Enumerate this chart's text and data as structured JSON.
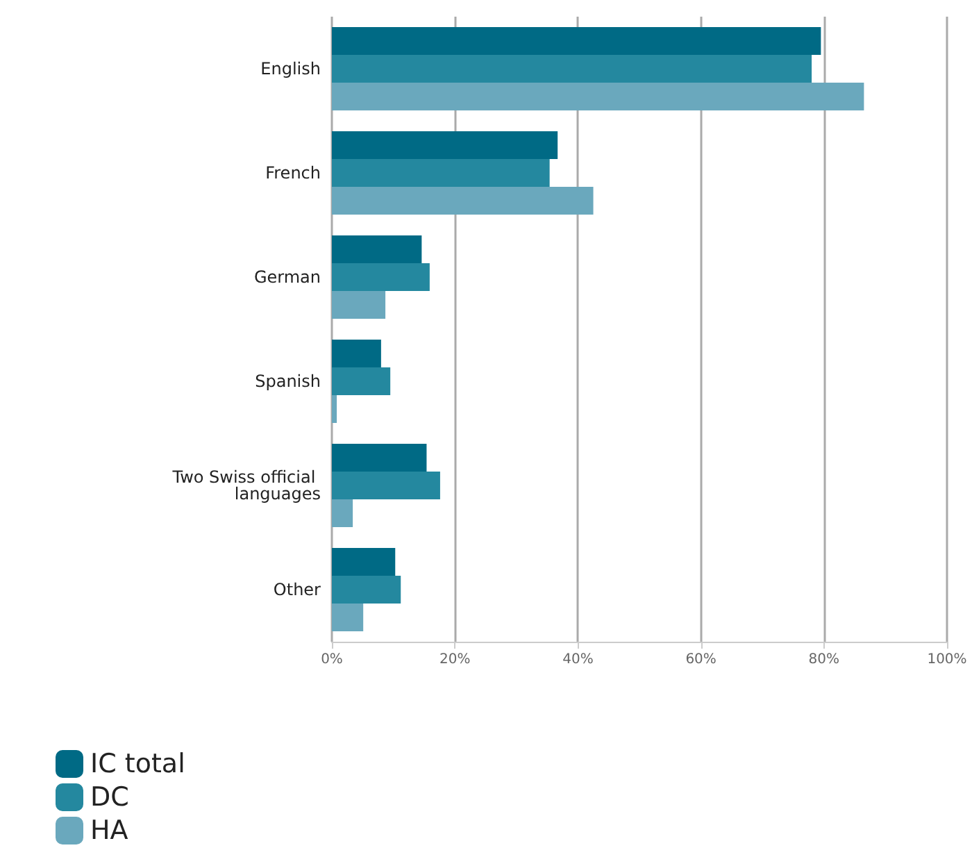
{
  "chart_data": {
    "type": "bar",
    "orientation": "horizontal",
    "categories": [
      "English",
      "French",
      "German",
      "Spanish",
      "Two Swiss official languages",
      "Other"
    ],
    "series": [
      {
        "name": "IC total",
        "color": "#006a85",
        "values": [
          79.5,
          36.7,
          14.6,
          8.0,
          15.4,
          10.3
        ]
      },
      {
        "name": "DC",
        "color": "#24889f",
        "values": [
          78.0,
          35.4,
          15.9,
          9.5,
          17.6,
          11.2
        ]
      },
      {
        "name": "HA",
        "color": "#6aa8bd",
        "values": [
          86.5,
          42.5,
          8.7,
          0.8,
          3.4,
          5.1
        ]
      }
    ],
    "xlim": [
      0,
      100
    ],
    "xticks": [
      {
        "value": 0,
        "label": "0%"
      },
      {
        "value": 20,
        "label": "20%"
      },
      {
        "value": 40,
        "label": "40%"
      },
      {
        "value": 60,
        "label": "60%"
      },
      {
        "value": 80,
        "label": "80%"
      },
      {
        "value": 100,
        "label": "100%"
      }
    ],
    "grid": "x",
    "legend": "bottom left"
  }
}
